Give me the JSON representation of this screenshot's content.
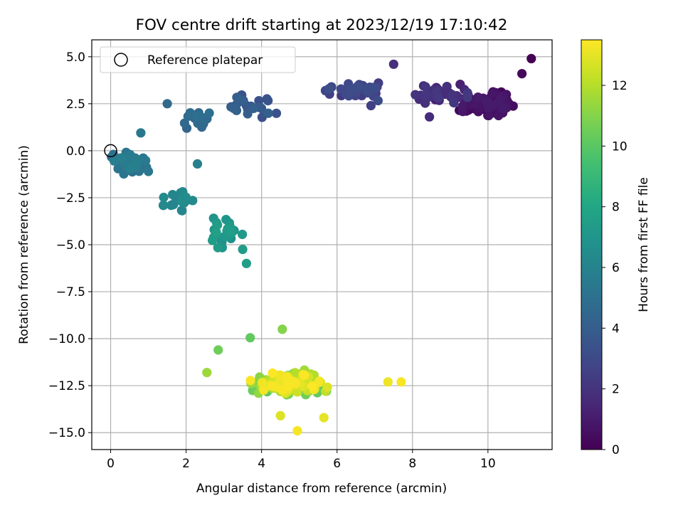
{
  "chart_data": {
    "type": "scatter",
    "title": "FOV centre drift starting at 2023/12/19 17:10:42",
    "xlabel": "Angular distance from reference (arcmin)",
    "ylabel": "Rotation from reference (arcmin)",
    "xlim": [
      -0.5,
      11.7
    ],
    "ylim": [
      -15.9,
      5.9
    ],
    "xticks": [
      0,
      2,
      4,
      6,
      8,
      10
    ],
    "yticks": [
      5.0,
      2.5,
      0.0,
      -2.5,
      -5.0,
      -7.5,
      -10.0,
      -12.5,
      -15.0
    ],
    "grid": true,
    "legend": {
      "placement": "top-left",
      "entries": [
        "Reference platepar"
      ]
    },
    "reference_point": {
      "x": 0,
      "y": 0
    },
    "colorbar": {
      "label": "Hours from first FF file",
      "colormap": "viridis",
      "range": [
        0,
        13.5
      ],
      "ticks": [
        0,
        2,
        4,
        6,
        8,
        10,
        12
      ]
    },
    "clusters": [
      {
        "hours": [
          0.0,
          1.0
        ],
        "center": [
          10.1,
          2.5
        ],
        "spread": [
          0.55,
          0.5
        ],
        "count": 95
      },
      {
        "hours": [
          1.0,
          2.2
        ],
        "center": [
          8.7,
          3.0
        ],
        "spread": [
          0.6,
          0.45
        ],
        "count": 50
      },
      {
        "hours": [
          2.2,
          3.3
        ],
        "center": [
          6.6,
          3.2
        ],
        "spread": [
          0.7,
          0.4
        ],
        "count": 45
      },
      {
        "hours": [
          3.3,
          4.2
        ],
        "center": [
          3.8,
          2.5
        ],
        "spread": [
          0.6,
          0.5
        ],
        "count": 22
      },
      {
        "hours": [
          4.2,
          4.9
        ],
        "center": [
          2.4,
          1.6
        ],
        "spread": [
          0.45,
          0.45
        ],
        "count": 22
      },
      {
        "hours": [
          4.9,
          5.8
        ],
        "center": [
          0.5,
          -0.6
        ],
        "spread": [
          0.35,
          0.45
        ],
        "count": 55
      },
      {
        "hours": [
          5.8,
          6.6
        ],
        "center": [
          1.7,
          -2.6
        ],
        "spread": [
          0.4,
          0.6
        ],
        "count": 20
      },
      {
        "hours": [
          6.6,
          7.6
        ],
        "center": [
          3.0,
          -4.4
        ],
        "spread": [
          0.45,
          0.6
        ],
        "count": 30
      },
      {
        "hours": [
          10.0,
          13.5
        ],
        "center": [
          4.7,
          -12.4
        ],
        "spread": [
          0.75,
          0.5
        ],
        "count": 170
      }
    ],
    "points": [
      {
        "x": 11.15,
        "y": 4.9,
        "h": 0.0
      },
      {
        "x": 10.9,
        "y": 4.1,
        "h": 0.3
      },
      {
        "x": 7.5,
        "y": 4.6,
        "h": 1.8
      },
      {
        "x": 4.55,
        "y": -9.5,
        "h": 11.0
      },
      {
        "x": 3.7,
        "y": -9.95,
        "h": 10.2
      },
      {
        "x": 4.95,
        "y": -14.9,
        "h": 13.3
      },
      {
        "x": 5.65,
        "y": -14.2,
        "h": 13.0
      },
      {
        "x": 4.5,
        "y": -14.1,
        "h": 12.8
      },
      {
        "x": 7.35,
        "y": -12.3,
        "h": 13.2
      },
      {
        "x": 7.7,
        "y": -12.3,
        "h": 13.4
      },
      {
        "x": 2.85,
        "y": -10.6,
        "h": 10.5
      },
      {
        "x": 2.55,
        "y": -11.8,
        "h": 11.5
      },
      {
        "x": 0.8,
        "y": 0.95,
        "h": 5.4
      },
      {
        "x": 2.3,
        "y": -0.7,
        "h": 5.9
      },
      {
        "x": 3.6,
        "y": -6.0,
        "h": 7.5
      },
      {
        "x": 3.5,
        "y": -5.25,
        "h": 7.4
      },
      {
        "x": 8.45,
        "y": 1.8,
        "h": 1.7
      },
      {
        "x": 6.9,
        "y": 2.4,
        "h": 2.5
      },
      {
        "x": 1.5,
        "y": 2.5,
        "h": 4.6
      }
    ]
  }
}
